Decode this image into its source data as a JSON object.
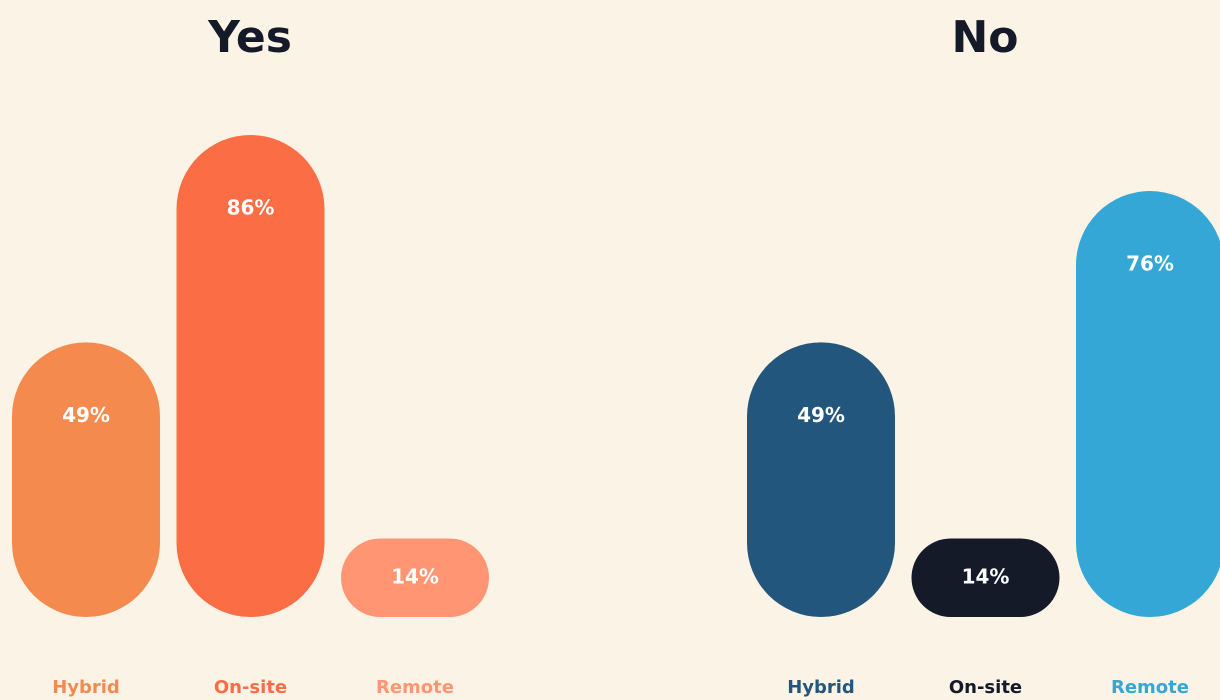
{
  "chart_data": [
    {
      "type": "bar",
      "title": "Yes",
      "categories": [
        "Hybrid",
        "On-site",
        "Remote"
      ],
      "values": [
        49,
        86,
        14
      ],
      "value_labels": [
        "49%",
        "86%",
        "14%"
      ],
      "colors": [
        "#f58a4e",
        "#fb6d45",
        "#ff9572"
      ]
    },
    {
      "type": "bar",
      "title": "No",
      "categories": [
        "Hybrid",
        "On-site",
        "Remote"
      ],
      "values": [
        49,
        14,
        76
      ],
      "value_labels": [
        "49%",
        "14%",
        "76%"
      ],
      "colors": [
        "#23567c",
        "#141a28",
        "#35a7d6"
      ]
    }
  ]
}
